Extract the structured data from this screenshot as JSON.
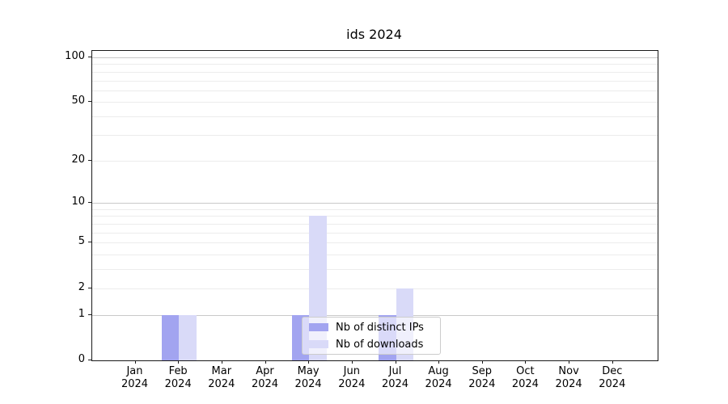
{
  "title": "ids 2024",
  "legend": {
    "items": [
      {
        "label": "Nb of distinct IPs",
        "color": "#a2a4f0"
      },
      {
        "label": "Nb of downloads",
        "color": "#d9daf8"
      }
    ]
  },
  "colors": {
    "bar_distinct_ips": "#a2a4f0",
    "bar_downloads": "#d9daf8",
    "grid_major": "#c9c9c9",
    "grid_minor": "#ececec",
    "axis": "#1a1a1a"
  },
  "chart_data": {
    "type": "bar",
    "title": "ids 2024",
    "xlabel": "",
    "ylabel": "",
    "categories": [
      "Jan 2024",
      "Feb 2024",
      "Mar 2024",
      "Apr 2024",
      "May 2024",
      "Jun 2024",
      "Jul 2024",
      "Aug 2024",
      "Sep 2024",
      "Oct 2024",
      "Nov 2024",
      "Dec 2024"
    ],
    "series": [
      {
        "name": "Nb of distinct IPs",
        "color": "#a2a4f0",
        "values": [
          0,
          1,
          0,
          0,
          1,
          0,
          1,
          0,
          0,
          0,
          0,
          0
        ]
      },
      {
        "name": "Nb of downloads",
        "color": "#d9daf8",
        "values": [
          0,
          1,
          0,
          0,
          8,
          0,
          2,
          0,
          0,
          0,
          0,
          0
        ]
      }
    ],
    "yscale": "log1p",
    "ylim": [
      0,
      110.3
    ],
    "yticks": [
      0,
      1,
      2,
      5,
      10,
      20,
      50,
      100
    ],
    "major_gridlines": [
      1,
      10,
      100
    ],
    "minor_gridlines": [
      3,
      4,
      6,
      7,
      8,
      9,
      30,
      40,
      60,
      70,
      80,
      90
    ],
    "grid": true,
    "legend_position": "lower center"
  }
}
